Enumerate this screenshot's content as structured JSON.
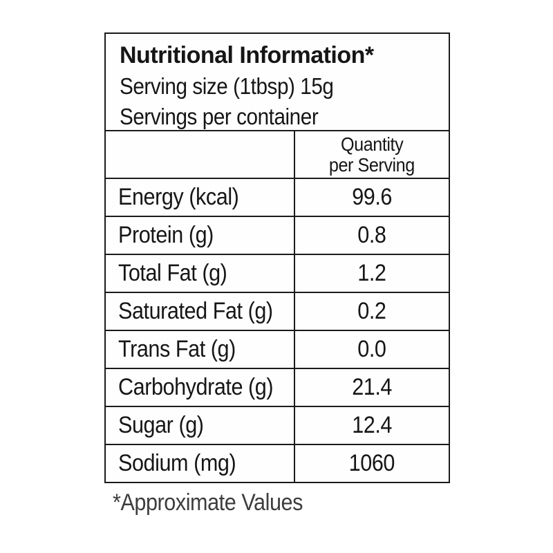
{
  "label": {
    "title": "Nutritional Information*",
    "serving_size": "Serving size (1tbsp) 15g",
    "servings_per_container": "Servings per container",
    "column_header": {
      "line1": "Quantity",
      "line2": "per Serving"
    },
    "rows": [
      {
        "nutrient": "Energy (kcal)",
        "quantity": "99.6"
      },
      {
        "nutrient": "Protein (g)",
        "quantity": "0.8"
      },
      {
        "nutrient": "Total Fat (g)",
        "quantity": "1.2"
      },
      {
        "nutrient": "Saturated Fat (g)",
        "quantity": "0.2"
      },
      {
        "nutrient": "Trans Fat (g)",
        "quantity": "0.0"
      },
      {
        "nutrient": "Carbohydrate (g)",
        "quantity": "21.4"
      },
      {
        "nutrient": "Sugar (g)",
        "quantity": "12.4"
      },
      {
        "nutrient": "Sodium (mg)",
        "quantity": "1060"
      }
    ],
    "footnote": "*Approximate Values"
  },
  "colors": {
    "background": "#ffffff",
    "text": "#161616",
    "border": "#1a1a1a",
    "footnote_text": "#3d3d3d"
  }
}
